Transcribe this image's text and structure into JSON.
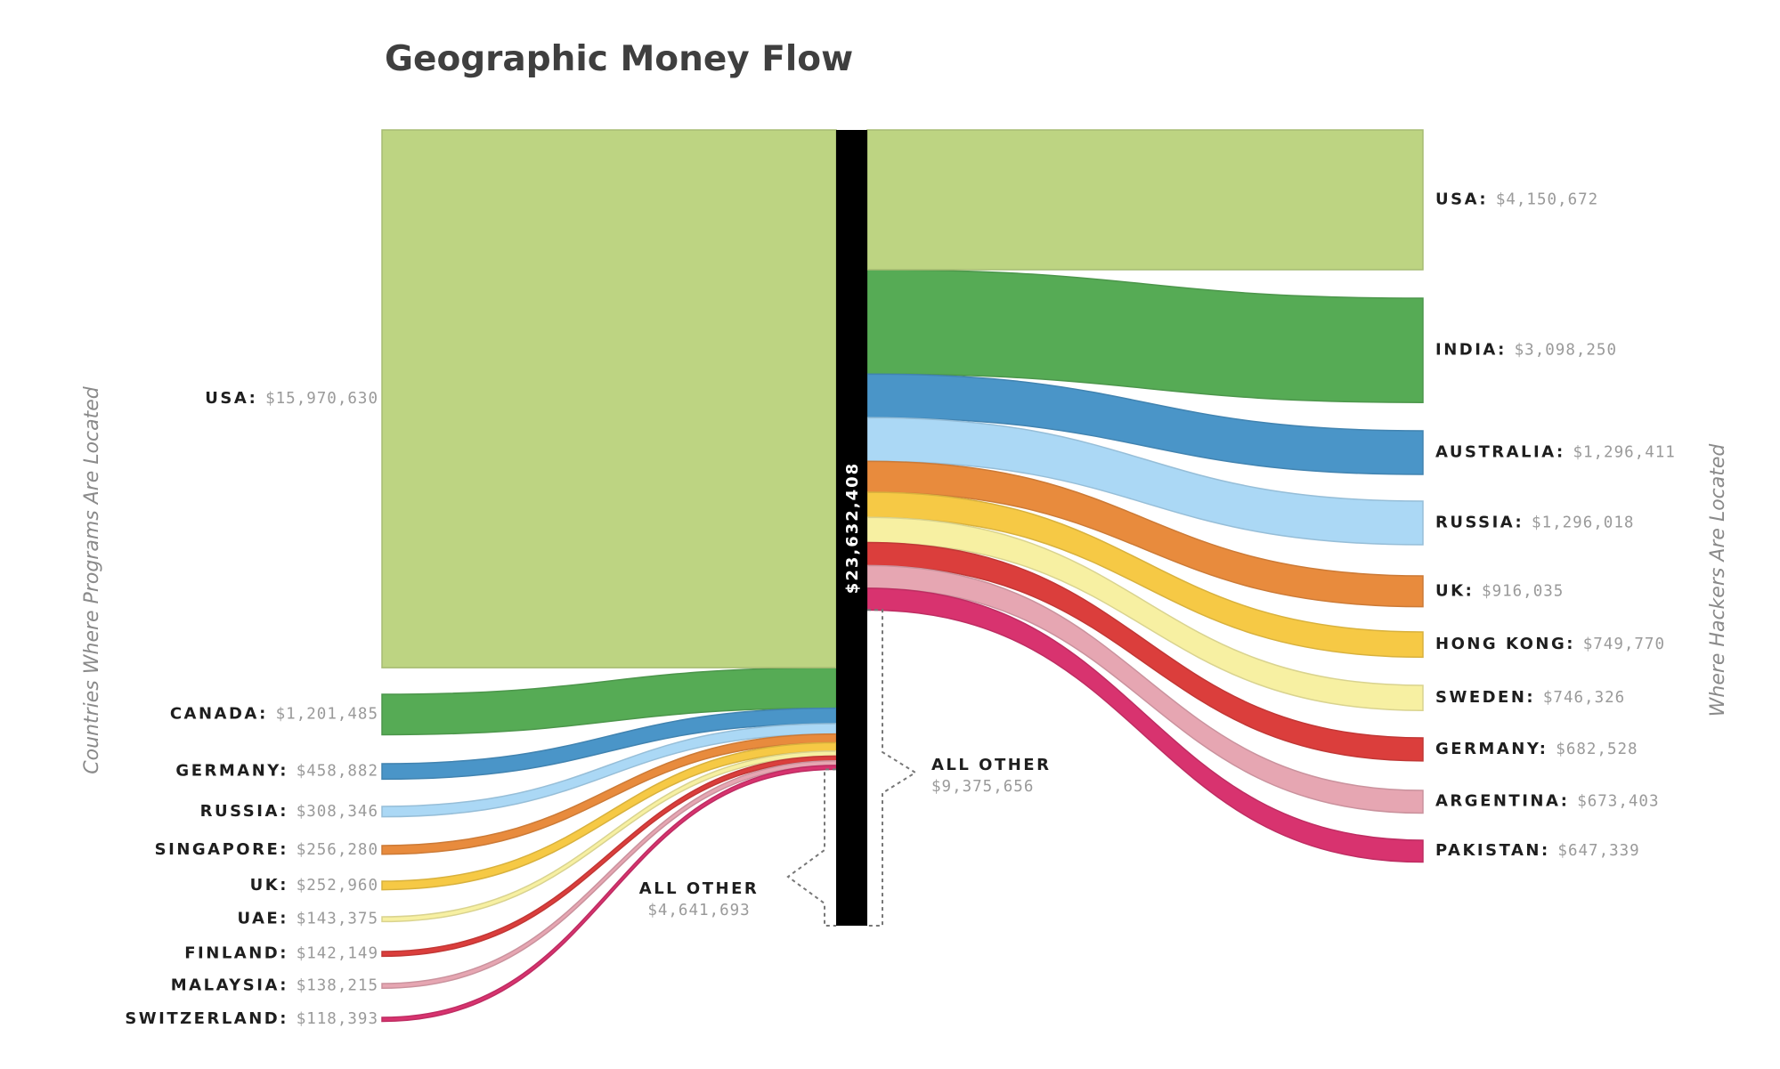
{
  "chart_data": {
    "type": "sankey",
    "title": "Geographic Money Flow",
    "left_axis_label": "Countries Where Programs Are Located",
    "right_axis_label": "Where Hackers Are Located",
    "total_label": "$23,632,408",
    "total_value": 23632408,
    "sources": [
      {
        "name": "USA",
        "value_label": "$15,970,630",
        "value": 15970630,
        "color": "#bdd482"
      },
      {
        "name": "CANADA",
        "value_label": "$1,201,485",
        "value": 1201485,
        "color": "#56ab55"
      },
      {
        "name": "GERMANY",
        "value_label": "$458,882",
        "value": 458882,
        "color": "#4a95c8"
      },
      {
        "name": "RUSSIA",
        "value_label": "$308,346",
        "value": 308346,
        "color": "#abd8f5"
      },
      {
        "name": "SINGAPORE",
        "value_label": "$256,280",
        "value": 256280,
        "color": "#e88b3d"
      },
      {
        "name": "UK",
        "value_label": "$252,960",
        "value": 252960,
        "color": "#f6c945"
      },
      {
        "name": "UAE",
        "value_label": "$143,375",
        "value": 143375,
        "color": "#f7f0a2"
      },
      {
        "name": "FINLAND",
        "value_label": "$142,149",
        "value": 142149,
        "color": "#db3e3c"
      },
      {
        "name": "MALAYSIA",
        "value_label": "$138,215",
        "value": 138215,
        "color": "#e6a6b2"
      },
      {
        "name": "SWITZERLAND",
        "value_label": "$118,393",
        "value": 118393,
        "color": "#d8336f"
      }
    ],
    "targets": [
      {
        "name": "USA",
        "value_label": "$4,150,672",
        "value": 4150672,
        "color": "#bdd482"
      },
      {
        "name": "INDIA",
        "value_label": "$3,098,250",
        "value": 3098250,
        "color": "#56ab55"
      },
      {
        "name": "AUSTRALIA",
        "value_label": "$1,296,411",
        "value": 1296411,
        "color": "#4a95c8"
      },
      {
        "name": "RUSSIA",
        "value_label": "$1,296,018",
        "value": 1296018,
        "color": "#abd8f5"
      },
      {
        "name": "UK",
        "value_label": "$916,035",
        "value": 916035,
        "color": "#e88b3d"
      },
      {
        "name": "HONG KONG",
        "value_label": "$749,770",
        "value": 749770,
        "color": "#f6c945"
      },
      {
        "name": "SWEDEN",
        "value_label": "$746,326",
        "value": 746326,
        "color": "#f7f0a2"
      },
      {
        "name": "GERMANY",
        "value_label": "$682,528",
        "value": 682528,
        "color": "#db3e3c"
      },
      {
        "name": "ARGENTINA",
        "value_label": "$673,403",
        "value": 673403,
        "color": "#e6a6b2"
      },
      {
        "name": "PAKISTAN",
        "value_label": "$647,339",
        "value": 647339,
        "color": "#d8336f"
      }
    ],
    "other_sources": {
      "name": "ALL OTHER",
      "value_label": "$4,641,693",
      "value": 4641693
    },
    "other_targets": {
      "name": "ALL OTHER",
      "value_label": "$9,375,656",
      "value": 9375656
    }
  }
}
